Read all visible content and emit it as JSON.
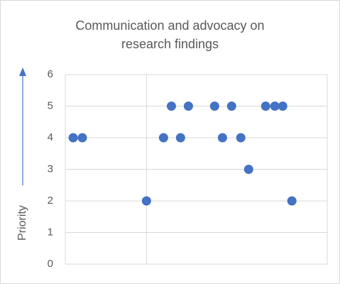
{
  "chart_data": {
    "type": "scatter",
    "title_lines": [
      "Communication and advocacy on",
      "research findings"
    ],
    "xlabel": "",
    "ylabel": "Priority",
    "ylim": [
      0,
      6
    ],
    "yticks": [
      "0",
      "1",
      "2",
      "3",
      "4",
      "5",
      "6"
    ],
    "xlim": [
      0,
      1
    ],
    "xgrid": [
      0.31
    ],
    "ygrid": true,
    "marker_color": "#4472c4",
    "ylabel_arrow": "up",
    "points": [
      {
        "x": 0.03,
        "y": 4
      },
      {
        "x": 0.065,
        "y": 4
      },
      {
        "x": 0.31,
        "y": 2
      },
      {
        "x": 0.375,
        "y": 4
      },
      {
        "x": 0.405,
        "y": 5
      },
      {
        "x": 0.44,
        "y": 4
      },
      {
        "x": 0.47,
        "y": 5
      },
      {
        "x": 0.57,
        "y": 5
      },
      {
        "x": 0.6,
        "y": 4
      },
      {
        "x": 0.635,
        "y": 5
      },
      {
        "x": 0.67,
        "y": 4
      },
      {
        "x": 0.7,
        "y": 3
      },
      {
        "x": 0.765,
        "y": 5
      },
      {
        "x": 0.8,
        "y": 5
      },
      {
        "x": 0.83,
        "y": 5
      },
      {
        "x": 0.865,
        "y": 2
      }
    ]
  }
}
